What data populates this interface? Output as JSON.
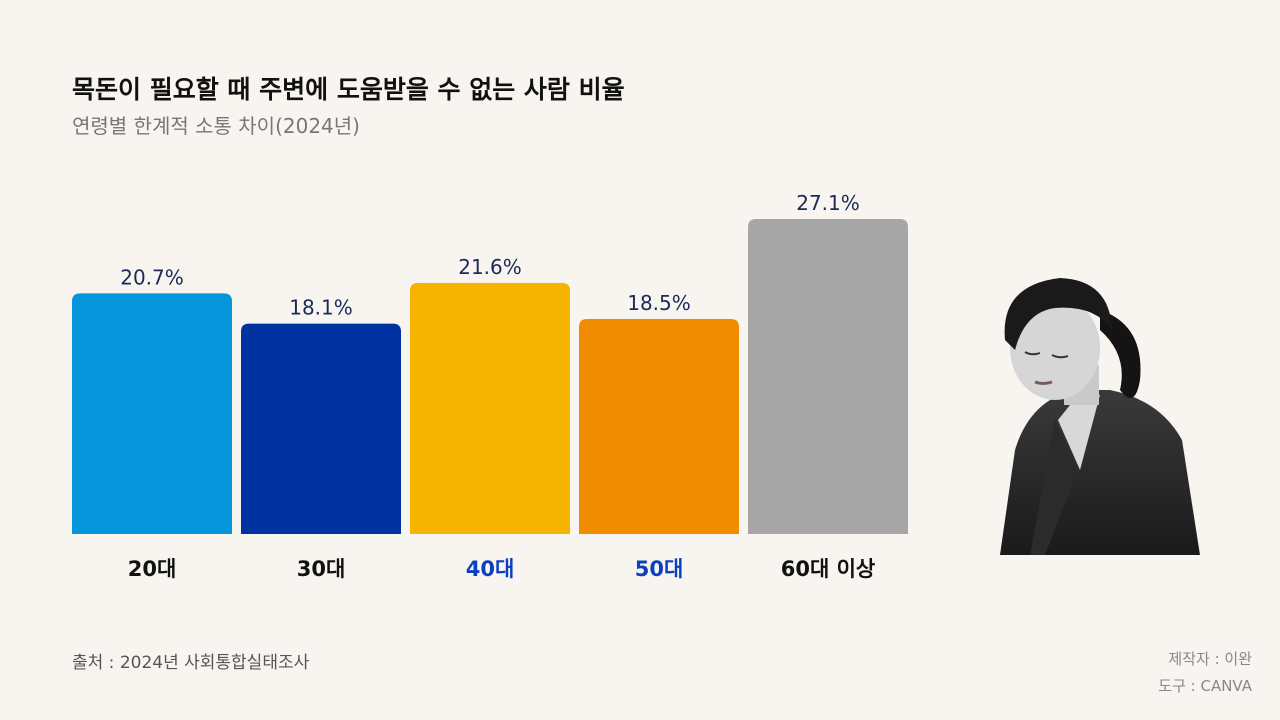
{
  "title": "목돈이 필요할 때 주변에 도움받을 수 없는 사람 비율",
  "subtitle": "연령별 한계적 소통 차이(2024년)",
  "source": "출처 : 2024년 사회통합실태조사",
  "credits": {
    "maker": "제작자 : 이완",
    "tool": "도구 : CANVA"
  },
  "chart_data": {
    "type": "bar",
    "categories": [
      "20대",
      "30대",
      "40대",
      "50대",
      "60대 이상"
    ],
    "values": [
      20.7,
      18.1,
      21.6,
      18.5,
      27.1
    ],
    "value_labels": [
      "20.7%",
      "18.1%",
      "21.6%",
      "18.5%",
      "27.1%"
    ],
    "bar_colors": [
      "#0595db",
      "#0033a1",
      "#f6b400",
      "#f08c00",
      "#a6a6a6"
    ],
    "category_label_colors": [
      "#111111",
      "#111111",
      "#0a3fc0",
      "#0a3fc0",
      "#111111"
    ],
    "ylim": [
      0,
      27.1
    ],
    "grid": false,
    "legend": "none"
  },
  "image": {
    "icon": "woman-looking-down-photo"
  }
}
